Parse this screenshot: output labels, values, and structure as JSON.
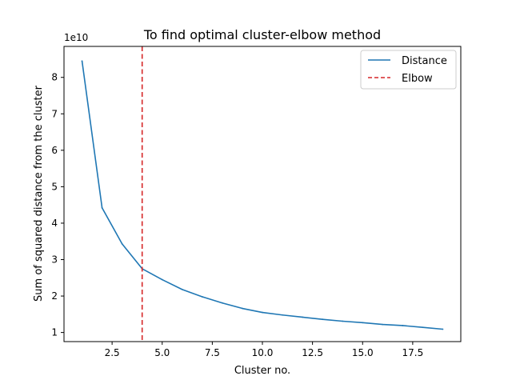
{
  "chart_data": {
    "type": "line",
    "title": "To find optimal cluster-elbow method",
    "xlabel": "Cluster no.",
    "ylabel": "Sum of squared distance from the cluster",
    "y_offset_label": "1e10",
    "xlim": [
      0.1,
      19.9
    ],
    "ylim": [
      0.75,
      8.85
    ],
    "xticks": [
      2.5,
      5.0,
      7.5,
      10.0,
      12.5,
      15.0,
      17.5
    ],
    "xtick_labels": [
      "2.5",
      "5.0",
      "7.5",
      "10.0",
      "12.5",
      "15.0",
      "17.5"
    ],
    "yticks": [
      1,
      2,
      3,
      4,
      5,
      6,
      7,
      8
    ],
    "ytick_labels": [
      "1",
      "2",
      "3",
      "4",
      "5",
      "6",
      "7",
      "8"
    ],
    "grid": false,
    "legend_position": "top-right",
    "series": [
      {
        "name": "Distance",
        "color": "#1f77b4",
        "style": "solid",
        "x": [
          1,
          2,
          3,
          4,
          5,
          6,
          7,
          8,
          9,
          10,
          11,
          12,
          13,
          14,
          15,
          16,
          17,
          18,
          19
        ],
        "values": [
          8.45,
          4.42,
          3.43,
          2.75,
          2.45,
          2.18,
          1.98,
          1.81,
          1.66,
          1.55,
          1.48,
          1.42,
          1.36,
          1.31,
          1.27,
          1.22,
          1.19,
          1.14,
          1.09
        ]
      }
    ],
    "reference_lines": [
      {
        "name": "Elbow",
        "orientation": "vertical",
        "x": 4,
        "color": "#d62728",
        "style": "dashed"
      }
    ]
  }
}
